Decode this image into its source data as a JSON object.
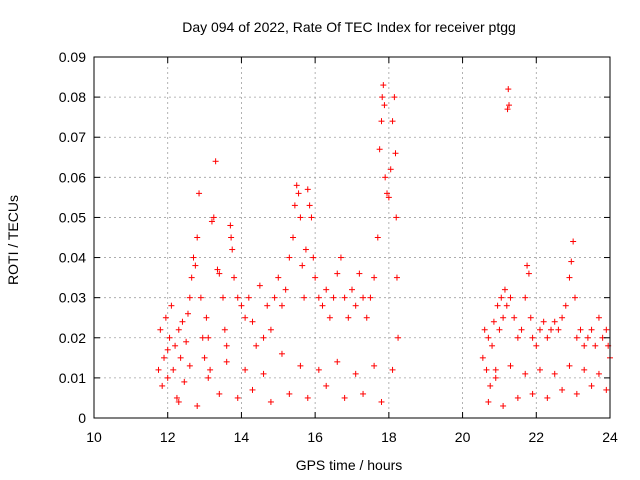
{
  "chart_data": {
    "type": "scatter",
    "title": "Day 094 of 2022, Rate Of TEC Index for receiver ptgg",
    "xlabel": "GPS time / hours",
    "ylabel": "ROTI / TECUs",
    "xlim": [
      10,
      24
    ],
    "ylim": [
      0,
      0.09
    ],
    "x_ticks": [
      "10",
      "12",
      "14",
      "16",
      "18",
      "20",
      "22",
      "24"
    ],
    "y_ticks": [
      "0",
      "0.01",
      "0.02",
      "0.03",
      "0.04",
      "0.05",
      "0.06",
      "0.07",
      "0.08",
      "0.09"
    ],
    "grid": true,
    "marker": "+",
    "series": [
      {
        "color": "#ff0000",
        "points": [
          [
            11.75,
            0.012
          ],
          [
            11.8,
            0.022
          ],
          [
            11.85,
            0.008
          ],
          [
            11.9,
            0.015
          ],
          [
            11.95,
            0.025
          ],
          [
            12.0,
            0.01
          ],
          [
            12.05,
            0.02
          ],
          [
            12.1,
            0.028
          ],
          [
            12.15,
            0.012
          ],
          [
            12.2,
            0.018
          ],
          [
            12.25,
            0.005
          ],
          [
            12.3,
            0.022
          ],
          [
            12.35,
            0.015
          ],
          [
            12.4,
            0.024
          ],
          [
            12.45,
            0.009
          ],
          [
            12.5,
            0.019
          ],
          [
            12.55,
            0.026
          ],
          [
            12.6,
            0.03
          ],
          [
            12.65,
            0.035
          ],
          [
            12.7,
            0.04
          ],
          [
            12.75,
            0.038
          ],
          [
            12.8,
            0.045
          ],
          [
            12.85,
            0.056
          ],
          [
            12.9,
            0.03
          ],
          [
            12.95,
            0.02
          ],
          [
            13.0,
            0.015
          ],
          [
            13.05,
            0.025
          ],
          [
            13.1,
            0.02
          ],
          [
            13.15,
            0.012
          ],
          [
            13.2,
            0.049
          ],
          [
            13.25,
            0.05
          ],
          [
            13.3,
            0.064
          ],
          [
            13.35,
            0.037
          ],
          [
            13.4,
            0.036
          ],
          [
            13.5,
            0.03
          ],
          [
            13.55,
            0.022
          ],
          [
            13.6,
            0.018
          ],
          [
            13.7,
            0.048
          ],
          [
            13.72,
            0.045
          ],
          [
            13.75,
            0.042
          ],
          [
            13.8,
            0.035
          ],
          [
            13.9,
            0.03
          ],
          [
            14.0,
            0.028
          ],
          [
            14.1,
            0.025
          ],
          [
            14.2,
            0.03
          ],
          [
            14.3,
            0.024
          ],
          [
            14.4,
            0.018
          ],
          [
            14.5,
            0.033
          ],
          [
            14.6,
            0.02
          ],
          [
            14.7,
            0.028
          ],
          [
            14.8,
            0.022
          ],
          [
            14.9,
            0.03
          ],
          [
            15.0,
            0.035
          ],
          [
            15.1,
            0.028
          ],
          [
            15.2,
            0.032
          ],
          [
            15.3,
            0.04
          ],
          [
            15.4,
            0.045
          ],
          [
            15.45,
            0.053
          ],
          [
            15.5,
            0.058
          ],
          [
            15.55,
            0.056
          ],
          [
            15.6,
            0.05
          ],
          [
            15.65,
            0.038
          ],
          [
            15.7,
            0.03
          ],
          [
            15.75,
            0.042
          ],
          [
            15.8,
            0.057
          ],
          [
            15.85,
            0.053
          ],
          [
            15.9,
            0.05
          ],
          [
            15.95,
            0.04
          ],
          [
            16.0,
            0.035
          ],
          [
            16.1,
            0.03
          ],
          [
            16.2,
            0.028
          ],
          [
            16.3,
            0.032
          ],
          [
            16.4,
            0.025
          ],
          [
            16.5,
            0.03
          ],
          [
            16.6,
            0.036
          ],
          [
            16.7,
            0.04
          ],
          [
            16.8,
            0.03
          ],
          [
            16.9,
            0.025
          ],
          [
            17.0,
            0.032
          ],
          [
            17.1,
            0.028
          ],
          [
            17.2,
            0.036
          ],
          [
            17.3,
            0.03
          ],
          [
            17.4,
            0.025
          ],
          [
            17.5,
            0.03
          ],
          [
            17.6,
            0.035
          ],
          [
            17.7,
            0.045
          ],
          [
            17.75,
            0.067
          ],
          [
            17.8,
            0.074
          ],
          [
            17.82,
            0.08
          ],
          [
            17.85,
            0.083
          ],
          [
            17.88,
            0.078
          ],
          [
            17.9,
            0.06
          ],
          [
            17.95,
            0.056
          ],
          [
            18.0,
            0.055
          ],
          [
            18.05,
            0.062
          ],
          [
            18.1,
            0.074
          ],
          [
            18.15,
            0.08
          ],
          [
            18.18,
            0.066
          ],
          [
            18.2,
            0.05
          ],
          [
            18.22,
            0.035
          ],
          [
            18.25,
            0.02
          ],
          [
            12.3,
            0.004
          ],
          [
            12.8,
            0.003
          ],
          [
            13.4,
            0.006
          ],
          [
            13.9,
            0.005
          ],
          [
            14.3,
            0.007
          ],
          [
            14.8,
            0.004
          ],
          [
            15.3,
            0.006
          ],
          [
            15.8,
            0.005
          ],
          [
            16.3,
            0.008
          ],
          [
            16.8,
            0.005
          ],
          [
            17.3,
            0.006
          ],
          [
            17.8,
            0.004
          ],
          [
            12.0,
            0.017
          ],
          [
            12.6,
            0.013
          ],
          [
            13.1,
            0.01
          ],
          [
            13.6,
            0.014
          ],
          [
            14.1,
            0.012
          ],
          [
            14.6,
            0.011
          ],
          [
            15.1,
            0.016
          ],
          [
            15.6,
            0.013
          ],
          [
            16.1,
            0.012
          ],
          [
            16.6,
            0.014
          ],
          [
            17.1,
            0.011
          ],
          [
            17.6,
            0.013
          ],
          [
            18.1,
            0.012
          ],
          [
            20.55,
            0.015
          ],
          [
            20.6,
            0.022
          ],
          [
            20.65,
            0.012
          ],
          [
            20.7,
            0.02
          ],
          [
            20.75,
            0.008
          ],
          [
            20.8,
            0.018
          ],
          [
            20.85,
            0.024
          ],
          [
            20.9,
            0.01
          ],
          [
            20.95,
            0.028
          ],
          [
            21.0,
            0.022
          ],
          [
            21.05,
            0.03
          ],
          [
            21.1,
            0.025
          ],
          [
            21.15,
            0.032
          ],
          [
            21.2,
            0.028
          ],
          [
            21.22,
            0.077
          ],
          [
            21.24,
            0.082
          ],
          [
            21.26,
            0.078
          ],
          [
            21.3,
            0.03
          ],
          [
            21.4,
            0.025
          ],
          [
            21.5,
            0.02
          ],
          [
            21.6,
            0.022
          ],
          [
            21.7,
            0.03
          ],
          [
            21.75,
            0.038
          ],
          [
            21.8,
            0.036
          ],
          [
            21.85,
            0.025
          ],
          [
            21.9,
            0.02
          ],
          [
            22.0,
            0.018
          ],
          [
            22.1,
            0.022
          ],
          [
            22.2,
            0.024
          ],
          [
            22.3,
            0.02
          ],
          [
            22.4,
            0.022
          ],
          [
            22.5,
            0.024
          ],
          [
            22.6,
            0.022
          ],
          [
            22.7,
            0.025
          ],
          [
            22.8,
            0.028
          ],
          [
            22.9,
            0.035
          ],
          [
            22.95,
            0.039
          ],
          [
            23.0,
            0.044
          ],
          [
            23.05,
            0.03
          ],
          [
            23.1,
            0.02
          ],
          [
            23.2,
            0.022
          ],
          [
            23.3,
            0.018
          ],
          [
            23.4,
            0.02
          ],
          [
            23.5,
            0.022
          ],
          [
            23.6,
            0.018
          ],
          [
            23.7,
            0.025
          ],
          [
            23.8,
            0.02
          ],
          [
            23.9,
            0.022
          ],
          [
            23.95,
            0.018
          ],
          [
            24.0,
            0.015
          ],
          [
            20.7,
            0.004
          ],
          [
            21.1,
            0.003
          ],
          [
            21.5,
            0.005
          ],
          [
            21.9,
            0.006
          ],
          [
            22.3,
            0.005
          ],
          [
            22.7,
            0.007
          ],
          [
            23.1,
            0.006
          ],
          [
            23.5,
            0.008
          ],
          [
            23.9,
            0.007
          ],
          [
            20.9,
            0.012
          ],
          [
            21.3,
            0.013
          ],
          [
            21.7,
            0.011
          ],
          [
            22.1,
            0.012
          ],
          [
            22.5,
            0.011
          ],
          [
            22.9,
            0.013
          ],
          [
            23.3,
            0.012
          ],
          [
            23.7,
            0.011
          ]
        ]
      }
    ]
  }
}
